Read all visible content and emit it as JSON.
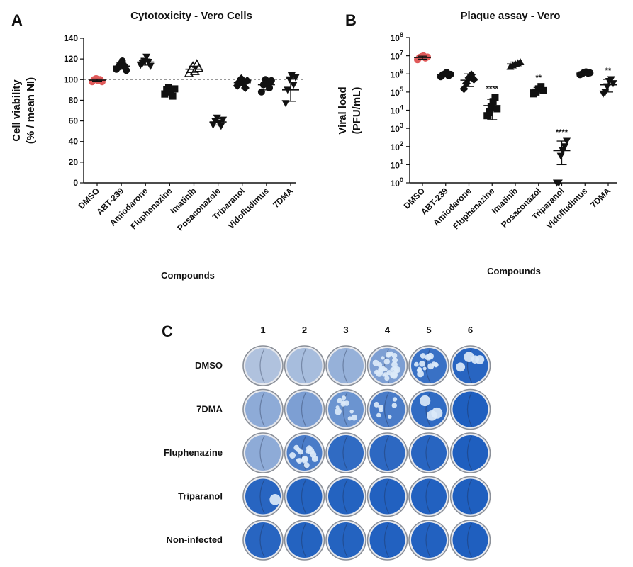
{
  "figure": {
    "panel_a": {
      "letter": "A"
    },
    "panel_b": {
      "letter": "B"
    },
    "panel_c": {
      "letter": "C",
      "columns": [
        "1",
        "2",
        "3",
        "4",
        "5",
        "6"
      ],
      "rows": [
        {
          "label": "DMSO",
          "plaques": [
            0,
            0,
            0,
            30,
            14,
            4
          ]
        },
        {
          "label": "7DMA",
          "plaques": [
            0,
            0,
            10,
            7,
            3,
            0
          ]
        },
        {
          "label": "Fluphenazine",
          "plaques": [
            0,
            14,
            0,
            0,
            0,
            0
          ]
        },
        {
          "label": "Triparanol",
          "plaques": [
            1,
            0,
            0,
            0,
            0,
            0
          ]
        },
        {
          "label": "Non-infected",
          "plaques": [
            0,
            0,
            0,
            0,
            0,
            0
          ]
        }
      ],
      "stain_level": [
        [
          0.15,
          0.2,
          0.3,
          0.45,
          0.85,
          0.95
        ],
        [
          0.35,
          0.45,
          0.55,
          0.75,
          0.9,
          1.0
        ],
        [
          0.35,
          0.75,
          0.9,
          0.92,
          0.95,
          1.0
        ],
        [
          0.95,
          0.97,
          0.97,
          0.98,
          0.98,
          1.0
        ],
        [
          0.95,
          0.97,
          0.97,
          0.98,
          0.98,
          1.0
        ]
      ],
      "colors": {
        "dense_stain": "#1f5fbf",
        "light_stain": "#c9d4e4",
        "plaque": "#dbe9f8",
        "rim": "#8a8f98"
      }
    }
  },
  "chart_data": [
    {
      "type": "scatter",
      "title": "Cytotoxicity - Vero Cells",
      "xlabel": "Compounds",
      "ylabel": [
        "Cell viability",
        "(% / mean NI)"
      ],
      "ylim": [
        0,
        140
      ],
      "yticks": [
        0,
        20,
        40,
        60,
        80,
        100,
        120,
        140
      ],
      "reference_line": 100,
      "categories": [
        "DMSO",
        "ABT-239",
        "Amiodarone",
        "Fluphenazine",
        "Imatinib",
        "Posaconazole",
        "Triparanol",
        "Vidofludimus",
        "7DMA"
      ],
      "series": [
        {
          "category": "DMSO",
          "marker": "circle",
          "color": "#e05a5a",
          "points": [
            98,
            100,
            101,
            99,
            100,
            98
          ],
          "mean": 99.5,
          "sd": 1
        },
        {
          "category": "ABT-239",
          "marker": "circle",
          "color": "#111111",
          "points": [
            110,
            112,
            115,
            118,
            113,
            109
          ],
          "mean": 113,
          "sd": 3
        },
        {
          "category": "Amiodarone",
          "marker": "triangle-down",
          "color": "#111111",
          "points": [
            114,
            116,
            118,
            122,
            117,
            113
          ],
          "mean": 117,
          "sd": 3
        },
        {
          "category": "Fluphenazine",
          "marker": "square",
          "color": "#111111",
          "points": [
            86,
            90,
            92,
            88,
            84,
            91
          ],
          "mean": 89,
          "sd": 3
        },
        {
          "category": "Imatinib",
          "marker": "triangle-up-open",
          "color": "#111111",
          "points": [
            106,
            110,
            113,
            108,
            115,
            111
          ],
          "mean": 110,
          "sd": 3
        },
        {
          "category": "Posaconazole",
          "marker": "triangle-down",
          "color": "#111111",
          "points": [
            56,
            60,
            63,
            58,
            55,
            61
          ],
          "mean": 59,
          "sd": 3
        },
        {
          "category": "Triparanol",
          "marker": "diamond",
          "color": "#111111",
          "points": [
            94,
            98,
            101,
            96,
            92,
            99
          ],
          "mean": 97,
          "sd": 3
        },
        {
          "category": "Vidofludimus",
          "marker": "circle",
          "color": "#111111",
          "points": [
            88,
            95,
            100,
            97,
            92,
            99
          ],
          "mean": 95,
          "sd": 5
        },
        {
          "category": "7DMA",
          "marker": "triangle-down",
          "color": "#111111",
          "points": [
            77,
            90,
            100,
            104,
            95,
            102
          ],
          "mean": 90,
          "sd": 11
        }
      ]
    },
    {
      "type": "scatter",
      "title": "Plaque assay - Vero",
      "xlabel": "Compounds",
      "ylabel": [
        "Viral load",
        "(PFU/mL)"
      ],
      "yscale": "log10",
      "ylim": [
        1,
        100000000
      ],
      "yticks": [
        "10^0",
        "10^1",
        "10^2",
        "10^3",
        "10^4",
        "10^5",
        "10^6",
        "10^7",
        "10^8"
      ],
      "categories": [
        "DMSO",
        "ABT-239",
        "Amiodarone",
        "Fluphenazine",
        "Imatinib",
        "Posaconazol",
        "Triparanol",
        "Vidofludimus",
        "7DMA"
      ],
      "series": [
        {
          "category": "DMSO",
          "marker": "circle",
          "color": "#e05a5a",
          "points": [
            6000000,
            8000000,
            9000000,
            10000000,
            7500000,
            8500000
          ],
          "mean": 8000000,
          "err": [
            6500000,
            9500000
          ],
          "sig": ""
        },
        {
          "category": "ABT-239",
          "marker": "circle",
          "color": "#111111",
          "points": [
            700000,
            900000,
            1000000,
            1200000,
            800000,
            950000
          ],
          "mean": 900000,
          "err": [
            700000,
            1200000
          ],
          "sig": ""
        },
        {
          "category": "Amiodarone",
          "marker": "diamond",
          "color": "#111111",
          "points": [
            150000,
            300000,
            600000,
            900000,
            500000
          ],
          "mean": 450000,
          "err": [
            200000,
            1000000
          ],
          "sig": ""
        },
        {
          "category": "Fluphenazine",
          "marker": "square",
          "color": "#111111",
          "points": [
            5000,
            8000,
            15000,
            30000,
            50000,
            12000
          ],
          "mean": 18000,
          "err": [
            3000,
            40000
          ],
          "sig": "****"
        },
        {
          "category": "Imatinib",
          "marker": "triangle-up",
          "color": "#111111",
          "points": [
            2500000,
            3000000,
            3500000,
            4000000,
            4500000
          ],
          "mean": 3500000,
          "err": [
            2500000,
            4500000
          ],
          "sig": ""
        },
        {
          "category": "Posaconazol",
          "marker": "square",
          "color": "#111111",
          "points": [
            80000,
            100000,
            150000,
            200000,
            120000
          ],
          "mean": 130000,
          "err": [
            90000,
            180000
          ],
          "sig": "**"
        },
        {
          "category": "Triparanol",
          "marker": "triangle-down",
          "color": "#111111",
          "points": [
            1,
            1,
            30,
            60,
            100,
            200
          ],
          "mean": 60,
          "err": [
            10,
            200
          ],
          "sig": "****"
        },
        {
          "category": "Vidofludimus",
          "marker": "circle",
          "color": "#111111",
          "points": [
            900000,
            1000000,
            1200000,
            1300000,
            1100000,
            1150000
          ],
          "mean": 1100000,
          "err": [
            900000,
            1300000
          ],
          "sig": ""
        },
        {
          "category": "7DMA",
          "marker": "triangle-down",
          "color": "#111111",
          "points": [
            80000,
            100000,
            200000,
            400000,
            500000,
            300000
          ],
          "mean": 250000,
          "err": [
            100000,
            500000
          ],
          "sig": "**"
        }
      ]
    }
  ]
}
